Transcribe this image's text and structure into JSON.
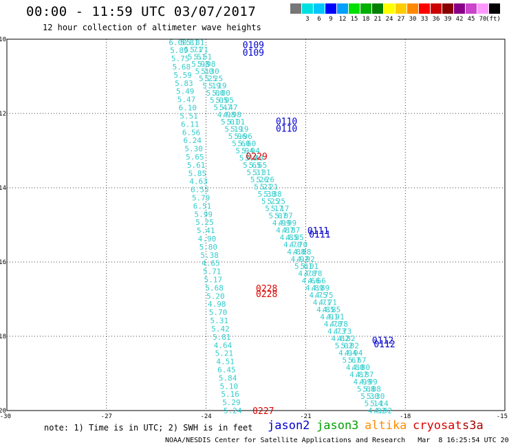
{
  "header": {
    "title": "00:00 - 11:59 UTC 03/07/2017",
    "subtitle": "12 hour collection of altimeter wave heights"
  },
  "colors": {
    "jason2": "#0000cc",
    "jason3": "#00a000",
    "altika": "#ff8c00",
    "cryosat": "#dd0000",
    "s3a": "#aa0000",
    "track": "#33cccc"
  },
  "scale": {
    "unit": "(ft)",
    "swatches": [
      {
        "label": "",
        "color": "#777777"
      },
      {
        "label": "3",
        "color": "#00e0e0"
      },
      {
        "label": "6",
        "color": "#00c8ff"
      },
      {
        "label": "9",
        "color": "#0000ff"
      },
      {
        "label": "12",
        "color": "#00a0ff"
      },
      {
        "label": "15",
        "color": "#00e000"
      },
      {
        "label": "18",
        "color": "#00b000"
      },
      {
        "label": "21",
        "color": "#008000"
      },
      {
        "label": "24",
        "color": "#ffff00"
      },
      {
        "label": "27",
        "color": "#ffcc00"
      },
      {
        "label": "30",
        "color": "#ff8800"
      },
      {
        "label": "33",
        "color": "#ff0000"
      },
      {
        "label": "36",
        "color": "#cc0000"
      },
      {
        "label": "39",
        "color": "#880000"
      },
      {
        "label": "42",
        "color": "#880088"
      },
      {
        "label": "45",
        "color": "#cc44cc"
      },
      {
        "label": "70",
        "color": "#ff99ff"
      },
      {
        "label": "",
        "color": "#000000"
      }
    ]
  },
  "axes": {
    "lon_labels": [
      "-30",
      "-27",
      "-24",
      "-21",
      "-18",
      "-15"
    ],
    "lat_labels": [
      "-10",
      "-12",
      "-14",
      "-16",
      "-18",
      "-20"
    ],
    "lon_range": [
      -30,
      -15
    ],
    "lat_range": [
      -10,
      -20
    ]
  },
  "tracks": {
    "left_swh": [
      "6.00",
      "5.89",
      "5.75",
      "5.68",
      "5.59",
      "5.83",
      "5.49",
      "5.47",
      "6.10",
      "5.51",
      "6.11",
      "6.56",
      "6.24",
      "5.30",
      "5.65",
      "5.61",
      "5.85",
      "4.63",
      "6.55",
      "5.79",
      "6.51",
      "5.99",
      "5.25",
      "5.41",
      "4.90",
      "5.80",
      "5.38",
      "4.65",
      "5.71",
      "5.17",
      "5.68",
      "5.20",
      "4.98",
      "5.70",
      "5.31",
      "5.42",
      "5.81",
      "4.64",
      "5.21",
      "4.51",
      "6.45",
      "5.84",
      "5.10",
      "5.16",
      "5.29",
      "5.24"
    ],
    "right_swh": [
      "5.81",
      "5.71",
      "5.51",
      "5.98",
      "5.30",
      "5.25",
      "5.19",
      "5.00",
      "5.05",
      "5.47",
      "4.98",
      "5.01",
      "5.19",
      "5.96",
      "5.60",
      "5.94",
      "5.40",
      "5.65",
      "5.31",
      "5.26",
      "5.21",
      "5.38",
      "5.25",
      "5.17",
      "5.07",
      "4.99",
      "4.87",
      "4.85",
      "4.70",
      "4.88",
      "4.92",
      "5.01",
      "4.78",
      "4.66",
      "4.89",
      "4.75",
      "4.71",
      "4.85",
      "4.91",
      "4.78",
      "4.73",
      "4.82",
      "5.02",
      "4.94",
      "5.67",
      "4.80",
      "4.87",
      "4.99",
      "5.08",
      "5.30",
      "5.14",
      "4.92"
    ],
    "passes": [
      {
        "label": "0109",
        "sat": "jason2",
        "lon": -22.9,
        "lat": -10.15
      },
      {
        "label": "0109",
        "sat": "jason2",
        "lon": -22.9,
        "lat": -10.35
      },
      {
        "label": "0110",
        "sat": "jason2",
        "lon": -21.9,
        "lat": -12.2
      },
      {
        "label": "0110",
        "sat": "jason2",
        "lon": -21.9,
        "lat": -12.4
      },
      {
        "label": "0229",
        "sat": "cryosat",
        "lon": -22.8,
        "lat": -13.15
      },
      {
        "label": "0111",
        "sat": "jason2",
        "lon": -20.95,
        "lat": -15.15
      },
      {
        "label": "0111",
        "sat": "jason2",
        "lon": -20.9,
        "lat": -15.25
      },
      {
        "label": "0228",
        "sat": "cryosat",
        "lon": -22.5,
        "lat": -16.7
      },
      {
        "label": "0228",
        "sat": "cryosat",
        "lon": -22.5,
        "lat": -16.85
      },
      {
        "label": "0112",
        "sat": "jason2",
        "lon": -19.0,
        "lat": -18.1
      },
      {
        "label": "0112",
        "sat": "jason2",
        "lon": -18.95,
        "lat": -18.2
      },
      {
        "label": "0227",
        "sat": "cryosat",
        "lon": -22.6,
        "lat": -20.0
      }
    ]
  },
  "legend": {
    "note": "note: 1) Time is in UTC; 2) SWH is in feet",
    "jason2": "jason2",
    "jason3": "jason3",
    "altika": "altika",
    "cryosat": "cryosat",
    "s3a": "s3a"
  },
  "footer": "NOAA/NESDIS Center for Satellite Applications and Research   Mar  8 16:25:54 UTC 2017"
}
